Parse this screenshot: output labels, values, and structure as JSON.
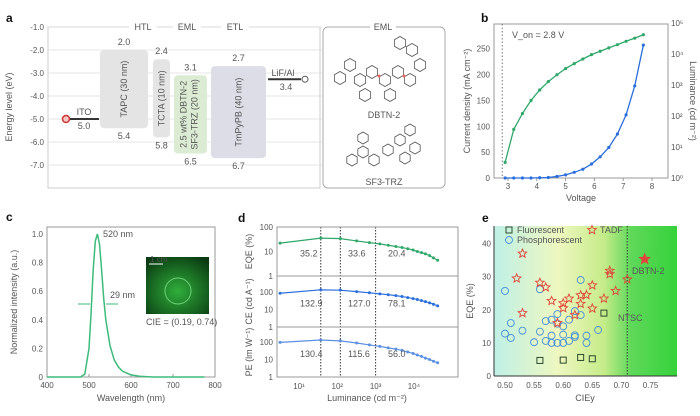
{
  "panel_labels": [
    "a",
    "b",
    "c",
    "d",
    "e"
  ],
  "chart_data": [
    {
      "panel": "a",
      "type": "diagram",
      "ylabel": "Energy level (eV)",
      "yticks": [
        "-1.0",
        "-2.0",
        "-3.0",
        "-4.0",
        "-5.0",
        "-6.0",
        "-7.0"
      ],
      "headers": [
        "HTL",
        "EML",
        "ETL"
      ],
      "layers": [
        {
          "name": "TAPC (30 nm)",
          "lumo": 2.0,
          "homo": 5.4,
          "lumo_label": "2.0",
          "homo_label": "5.4",
          "color": "#e4e4e4"
        },
        {
          "name": "TCTA (10 nm)",
          "lumo": 2.4,
          "homo": 5.8,
          "lumo_label": "2.4",
          "homo_label": "5.8",
          "color": "#e4e4e4"
        },
        {
          "name": "SF3-TRZ (20 nm)",
          "dopant": "2.5 wt% DBTN-2",
          "lumo": 3.1,
          "homo": 6.5,
          "lumo_label": "3.1",
          "homo_label": "6.5",
          "color": "#dcebd3"
        },
        {
          "name": "TmPyPB (40 nm)",
          "lumo": 2.7,
          "homo": 6.7,
          "lumo_label": "2.7",
          "homo_label": "6.7",
          "color": "#dcdde6"
        }
      ],
      "electrodes": [
        {
          "name": "ITO",
          "level": 5.0,
          "label": "5.0"
        },
        {
          "name": "LiF/Al",
          "level": 3.4,
          "label": "3.4"
        }
      ],
      "molecules": {
        "title": "EML",
        "items": [
          "DBTN-2",
          "SF3-TRZ"
        ]
      }
    },
    {
      "panel": "b",
      "type": "line",
      "xlabel": "Voltage",
      "ylabel_left": "Current density (mA cm⁻²)",
      "ylabel_right": "Luminance (cd m⁻²)",
      "annotation": "V_on = 2.8 V",
      "von": 2.8,
      "xlim": [
        2.6,
        8.5
      ],
      "xticks": [
        "3",
        "4",
        "5",
        "6",
        "7",
        "8"
      ],
      "ylim_left": [
        0,
        285
      ],
      "yticks_left": [
        "0",
        "50",
        "100",
        "150",
        "200",
        "250"
      ],
      "ylim_right": [
        1,
        100000
      ],
      "yscale_right": "log",
      "yticks_right": [
        "10⁰",
        "10¹",
        "10²",
        "10³",
        "10⁴",
        "10⁵"
      ],
      "x": [
        2.9,
        3.2,
        3.5,
        3.8,
        4.1,
        4.4,
        4.7,
        5.0,
        5.3,
        5.6,
        5.9,
        6.2,
        6.5,
        6.8,
        7.1,
        7.4,
        7.7
      ],
      "series": [
        {
          "axis": "left",
          "color": "#2a6fdb",
          "values": [
            0,
            0,
            0,
            0,
            0.5,
            1,
            3,
            6,
            11,
            17,
            27,
            41,
            59,
            85,
            122,
            178,
            257
          ]
        },
        {
          "axis": "right",
          "color": "#2fa86a",
          "values": [
            3.2,
            37,
            120,
            320,
            690,
            1290,
            2140,
            3390,
            4900,
            6900,
            9550,
            12300,
            15800,
            20000,
            25700,
            32400,
            41700
          ]
        }
      ]
    },
    {
      "panel": "c",
      "type": "line",
      "xlabel": "Wavelength (nm)",
      "ylabel": "Normalized intensity (a.u.)",
      "xlim": [
        400,
        800
      ],
      "ylim": [
        0,
        1.05
      ],
      "xticks": [
        "400",
        "500",
        "600",
        "700",
        "800"
      ],
      "yticks": [
        "0",
        "0.2",
        "0.4",
        "0.6",
        "0.8",
        "1.0"
      ],
      "color": "#3dbb7a",
      "x": [
        400,
        480,
        490,
        500,
        505,
        510,
        515,
        520,
        525,
        530,
        535,
        540,
        550,
        560,
        570,
        580,
        600,
        620,
        650,
        775
      ],
      "y": [
        0,
        0,
        0.02,
        0.2,
        0.45,
        0.75,
        0.95,
        1.0,
        0.93,
        0.75,
        0.55,
        0.4,
        0.22,
        0.12,
        0.07,
        0.04,
        0.015,
        0.005,
        0,
        0
      ],
      "annotations": {
        "peak": "520 nm",
        "fwhm": "29 nm",
        "cie": "CIE = (0.19, 0.74)",
        "scale": "1 cm"
      }
    },
    {
      "panel": "d",
      "type": "line",
      "xlabel": "Luminance (cd m⁻²)",
      "xscale": "log",
      "xticks": [
        "10¹",
        "10²",
        "10³",
        "10⁴"
      ],
      "yscale": "log",
      "x": [
        3.2,
        37,
        120,
        320,
        690,
        1290,
        2140,
        3390,
        4900,
        6900,
        9550,
        12300,
        15800,
        20000,
        25700,
        32400,
        41700
      ],
      "guides": [
        37,
        120,
        1000
      ],
      "subplots": [
        {
          "ylabel": "EQE (%)",
          "color": "#2fa86a",
          "yticks": [
            "1",
            "10",
            "100"
          ],
          "values": [
            22,
            35.2,
            33.6,
            27,
            23,
            20.4,
            18,
            16,
            14.5,
            13,
            11.5,
            10,
            9,
            8,
            6.8,
            5.5,
            4.4
          ],
          "labels": [
            "35.2",
            "33.6",
            "20.4"
          ]
        },
        {
          "ylabel": "CE (cd A⁻¹)",
          "color": "#2a6fdb",
          "yticks": [
            "1",
            "10",
            "100"
          ],
          "values": [
            85,
            132.9,
            127,
            105,
            90,
            78.1,
            70,
            62,
            55,
            48,
            42,
            37,
            32,
            28,
            24,
            20,
            16
          ],
          "labels": [
            "132.9",
            "127.0",
            "78.1"
          ]
        },
        {
          "ylabel": "PE (lm W⁻¹)",
          "color": "#5b8fe0",
          "yticks": [
            "1",
            "10",
            "100"
          ],
          "values": [
            95,
            130.4,
            115.6,
            88,
            68,
            56,
            46,
            39,
            33,
            27,
            22,
            18,
            15,
            12,
            10,
            8,
            6.5
          ],
          "labels": [
            "130.4",
            "115.6",
            "56.0"
          ]
        }
      ]
    },
    {
      "panel": "e",
      "type": "scatter",
      "xlabel": "CIEy",
      "ylabel": "EQE (%)",
      "xlim": [
        0.48,
        0.79
      ],
      "ylim": [
        0,
        45
      ],
      "xticks": [
        "0.50",
        "0.55",
        "0.60",
        "0.65",
        "0.70",
        "0.75"
      ],
      "yticks": [
        "0",
        "10",
        "20",
        "30",
        "40"
      ],
      "ntsc": {
        "x": 0.71,
        "label": "NTSC"
      },
      "series": [
        {
          "name": "Fluorescent",
          "marker": "square",
          "color": "#2d4a2d",
          "points": [
            [
              0.56,
              4.7
            ],
            [
              0.6,
              4.8
            ],
            [
              0.63,
              5.6
            ],
            [
              0.65,
              5.2
            ],
            [
              0.67,
              19
            ]
          ]
        },
        {
          "name": "Phosphorescent",
          "marker": "circle",
          "color": "#4a8fd8",
          "points": [
            [
              0.5,
              25.7
            ],
            [
              0.5,
              12.8
            ],
            [
              0.51,
              16
            ],
            [
              0.51,
              11.5
            ],
            [
              0.53,
              13.7
            ],
            [
              0.55,
              10.2
            ],
            [
              0.56,
              26.2
            ],
            [
              0.56,
              13.4
            ],
            [
              0.57,
              16.6
            ],
            [
              0.57,
              10.6
            ],
            [
              0.58,
              17
            ],
            [
              0.58,
              12.2
            ],
            [
              0.58,
              10
            ],
            [
              0.59,
              18.7
            ],
            [
              0.59,
              10
            ],
            [
              0.59,
              15.8
            ],
            [
              0.6,
              15
            ],
            [
              0.6,
              12.5
            ],
            [
              0.6,
              10
            ],
            [
              0.61,
              17
            ],
            [
              0.61,
              10.6
            ],
            [
              0.62,
              19.6
            ],
            [
              0.62,
              12.3
            ],
            [
              0.62,
              11.8
            ],
            [
              0.63,
              29
            ],
            [
              0.63,
              18.4
            ],
            [
              0.64,
              12.2
            ],
            [
              0.64,
              10
            ],
            [
              0.66,
              13.9
            ]
          ]
        },
        {
          "name": "TADF",
          "marker": "star",
          "color": "#e0453a",
          "points": [
            [
              0.53,
              37
            ],
            [
              0.52,
              29.5
            ],
            [
              0.53,
              19
            ],
            [
              0.56,
              28.2
            ],
            [
              0.57,
              26.8
            ],
            [
              0.58,
              22.7
            ],
            [
              0.59,
              16
            ],
            [
              0.6,
              22
            ],
            [
              0.6,
              20.5
            ],
            [
              0.61,
              23.4
            ],
            [
              0.62,
              18.4
            ],
            [
              0.63,
              24.4
            ],
            [
              0.63,
              21.8
            ],
            [
              0.64,
              24.5
            ],
            [
              0.65,
              27.4
            ],
            [
              0.65,
              20.4
            ],
            [
              0.67,
              23.4
            ],
            [
              0.68,
              31.8
            ],
            [
              0.68,
              30.8
            ],
            [
              0.69,
              25.7
            ],
            [
              0.71,
              29.2
            ]
          ]
        }
      ],
      "highlight": {
        "name": "DBTN-2",
        "x": 0.74,
        "y": 35.3,
        "color": "#e0453a"
      }
    }
  ]
}
